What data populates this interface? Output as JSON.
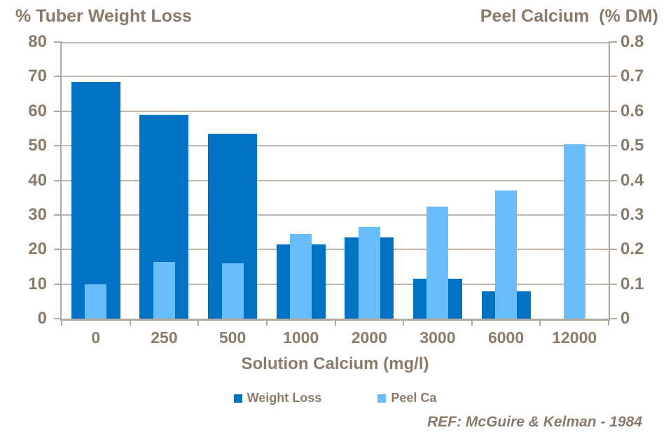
{
  "header": {
    "left_title": "% Tuber Weight Loss",
    "right_title": "Peel Calcium  (% DM)"
  },
  "chart_data": {
    "type": "bar",
    "title": "",
    "categories": [
      "0",
      "250",
      "500",
      "1000",
      "2000",
      "3000",
      "6000",
      "12000"
    ],
    "series": [
      {
        "name": "Weight Loss",
        "axis": "left",
        "color": "#0072C4",
        "values": [
          68.5,
          59,
          53.5,
          21.5,
          23.5,
          11.5,
          8,
          null
        ]
      },
      {
        "name": "Peel Ca",
        "axis": "right",
        "color": "#6ABDFB",
        "values": [
          0.1,
          0.165,
          0.16,
          0.245,
          0.265,
          0.325,
          0.37,
          0.505
        ]
      }
    ],
    "left_axis": {
      "title": "% Tuber Weight Loss",
      "min": 0,
      "max": 80,
      "step": 10,
      "tick_labels": [
        "80",
        "70",
        "60",
        "50",
        "40",
        "30",
        "20",
        "10",
        "0"
      ]
    },
    "right_axis": {
      "title": "Peel Calcium (% DM)",
      "min": 0,
      "max": 0.8,
      "step": 0.1,
      "tick_labels": [
        "0.8",
        "0.7",
        "0.6",
        "0.5",
        "0.4",
        "0.3",
        "0.2",
        "0.1",
        "0"
      ]
    },
    "x_axis": {
      "title": "Solution Calcium (mg/l)",
      "tick_labels": [
        "0",
        "250",
        "500",
        "1000",
        "2000",
        "3000",
        "6000",
        "12000"
      ]
    },
    "grid": true,
    "legend_position": "bottom",
    "bar_layout": "wide dark bar with narrow light bar overlaid, centered per category"
  },
  "legend": {
    "items": [
      {
        "label": "Weight Loss",
        "color": "#0072C4"
      },
      {
        "label": "Peel Ca",
        "color": "#6ABDFB"
      }
    ]
  },
  "footer": {
    "reference": "REF: McGuire & Kelman - 1984"
  },
  "colors": {
    "text": "#8A7A6A",
    "gridline": "#BFB5AB",
    "axis": "#B3A99F",
    "background": "#FFFFFF",
    "weight_loss": "#0072C4",
    "peel_ca": "#6ABDFB"
  }
}
